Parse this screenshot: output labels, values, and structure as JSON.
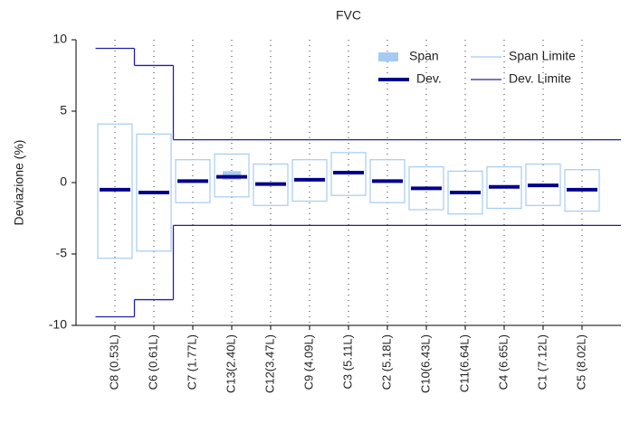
{
  "chart_data": {
    "type": "range",
    "title": "FVC",
    "y_label": "Deviazione (%)",
    "categories": [
      "C8 (0.53L)",
      "C6 (0.61L)",
      "C7 (1.77L)",
      "C13(2.40L)",
      "C12(3.47L)",
      "C9 (4.09L)",
      "C3 (5.11L)",
      "C2 (5.18L)",
      "C10(6.43L)",
      "C11(6.64L)",
      "C4 (6.65L)",
      "C1 (7.12L)",
      "C5 (8.02L)"
    ],
    "series": [
      {
        "name": "Span",
        "color": "#a6cbf3",
        "low": [
          -0.6,
          -0.8,
          0.0,
          0.2,
          -0.2,
          0.1,
          0.6,
          0.0,
          -0.5,
          -0.8,
          -0.4,
          -0.3,
          -0.6
        ],
        "high": [
          -0.4,
          -0.6,
          0.2,
          0.8,
          0.0,
          0.3,
          0.8,
          0.2,
          -0.3,
          -0.6,
          -0.2,
          -0.1,
          -0.4
        ]
      },
      {
        "name": "Span Limite",
        "color": "#a6cbf3",
        "low": [
          -5.3,
          -4.8,
          -1.4,
          -1.0,
          -1.6,
          -1.3,
          -0.9,
          -1.4,
          -1.9,
          -2.2,
          -1.8,
          -1.6,
          -2.0
        ],
        "high": [
          4.1,
          3.4,
          1.6,
          2.0,
          1.3,
          1.6,
          2.1,
          1.6,
          1.1,
          0.8,
          1.1,
          1.3,
          0.9
        ]
      },
      {
        "name": "Dev.",
        "color": "#00008b",
        "values": [
          -0.5,
          -0.7,
          0.1,
          0.4,
          -0.1,
          0.2,
          0.7,
          0.1,
          -0.4,
          -0.7,
          -0.3,
          -0.2,
          -0.5
        ]
      },
      {
        "name": "Dev. Limite",
        "color": "#2020a8",
        "low": [
          -9.4,
          -8.2,
          -3.0,
          -3.0,
          -3.0,
          -3.0,
          -3.0,
          -3.0,
          -3.0,
          -3.0,
          -3.0,
          -3.0,
          -3.0
        ],
        "high": [
          9.4,
          8.2,
          3.0,
          3.0,
          3.0,
          3.0,
          3.0,
          3.0,
          3.0,
          3.0,
          3.0,
          3.0,
          3.0
        ]
      }
    ],
    "ylim": [
      -10,
      10
    ],
    "yticks": [
      -10,
      -5,
      0,
      5,
      10
    ],
    "grid": true
  }
}
